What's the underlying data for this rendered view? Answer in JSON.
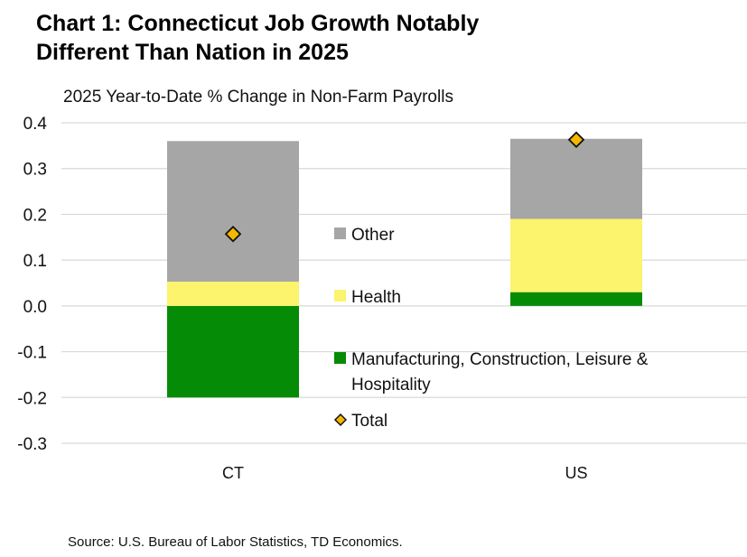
{
  "title_line1": "Chart 1: Connecticut Job Growth Notably",
  "title_line2": "Different Than Nation in 2025",
  "source": "Source: U.S. Bureau of Labor Statistics, TD Economics.",
  "chart_data": {
    "type": "bar",
    "stacked": true,
    "title": "2025 Year-to-Date % Change in Non-Farm Payrolls",
    "categories": [
      "CT",
      "US"
    ],
    "ylim": [
      -0.3,
      0.4
    ],
    "yticks": [
      0.4,
      0.3,
      0.2,
      0.1,
      0.0,
      -0.1,
      -0.2,
      -0.3
    ],
    "ytick_labels": [
      "0.4",
      "0.3",
      "0.2",
      "0.1",
      "0.0",
      "-0.1",
      "-0.2",
      "-0.3"
    ],
    "grid": true,
    "series": [
      {
        "name": "Manufacturing, Construction, Leisure & Hospitality",
        "color": "#068b06",
        "values": [
          -0.2,
          0.03
        ]
      },
      {
        "name": "Health",
        "color": "#fbf46c",
        "values": [
          0.053,
          0.16
        ]
      },
      {
        "name": "Other",
        "color": "#a6a6a6",
        "values": [
          0.307,
          0.175
        ]
      }
    ],
    "total": {
      "name": "Total",
      "color": "#f5b800",
      "values": [
        0.157,
        0.363
      ]
    },
    "legend": {
      "position": "center",
      "items": [
        {
          "label": "Other",
          "swatch": "#a6a6a6",
          "kind": "square"
        },
        {
          "label": "Health",
          "swatch": "#fbf46c",
          "kind": "square"
        },
        {
          "label_line1": "Manufacturing, Construction, Leisure &",
          "label_line2": "Hospitality",
          "swatch": "#068b06",
          "kind": "square"
        },
        {
          "label": "Total",
          "swatch": "#f5b800",
          "kind": "diamond"
        }
      ]
    }
  }
}
